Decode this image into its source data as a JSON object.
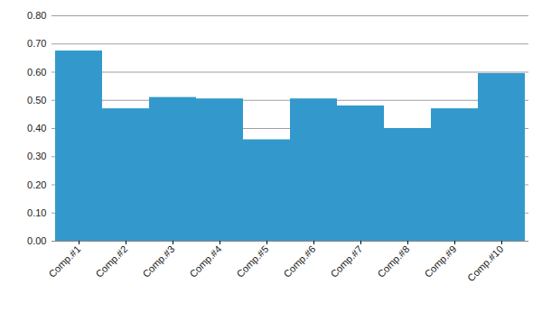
{
  "chart_data": {
    "type": "bar",
    "categories": [
      "Comp.#1",
      "Comp.#2",
      "Comp.#3",
      "Comp.#4",
      "Comp.#5",
      "Comp.#6",
      "Comp.#7",
      "Comp.#8",
      "Comp.#9",
      "Comp.#10"
    ],
    "values": [
      0.675,
      0.47,
      0.51,
      0.505,
      0.36,
      0.505,
      0.48,
      0.4,
      0.47,
      0.595
    ],
    "color": "#3399cc",
    "ylim": [
      0,
      0.8
    ],
    "yticks": [
      {
        "value": 0,
        "label": "0.00"
      },
      {
        "value": 0.1,
        "label": "0.10"
      },
      {
        "value": 0.2,
        "label": "0.20"
      },
      {
        "value": 0.3,
        "label": "0.30"
      },
      {
        "value": 0.4,
        "label": "0.40"
      },
      {
        "value": 0.5,
        "label": "0.50"
      },
      {
        "value": 0.6,
        "label": "0.60"
      },
      {
        "value": 0.7,
        "label": "0.70"
      },
      {
        "value": 0.8,
        "label": "0.80"
      }
    ],
    "grid": true
  }
}
